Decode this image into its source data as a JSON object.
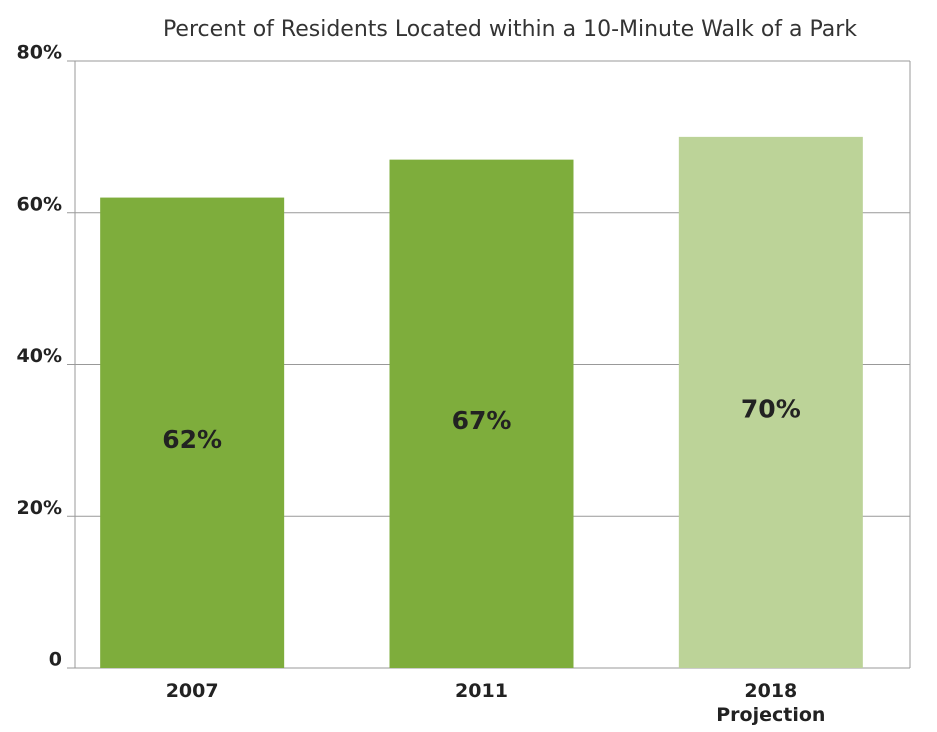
{
  "chart_data": {
    "type": "bar",
    "title": "Percent of Residents Located within a 10-Minute Walk of a Park",
    "categories": [
      "2007",
      "2011",
      "2018\nProjection"
    ],
    "values": [
      62,
      67,
      70
    ],
    "value_labels": [
      "62%",
      "67%",
      "70%"
    ],
    "colors": [
      "#7ead3c",
      "#7ead3c",
      "#bcd398"
    ],
    "ylim": [
      0,
      80
    ],
    "yticks": [
      0,
      {
        "value": 20,
        "label": "20%"
      },
      {
        "value": 40,
        "label": "40%"
      },
      {
        "value": 60,
        "label": "60%"
      },
      {
        "value": 80,
        "label": "80%"
      }
    ],
    "grid": true
  }
}
